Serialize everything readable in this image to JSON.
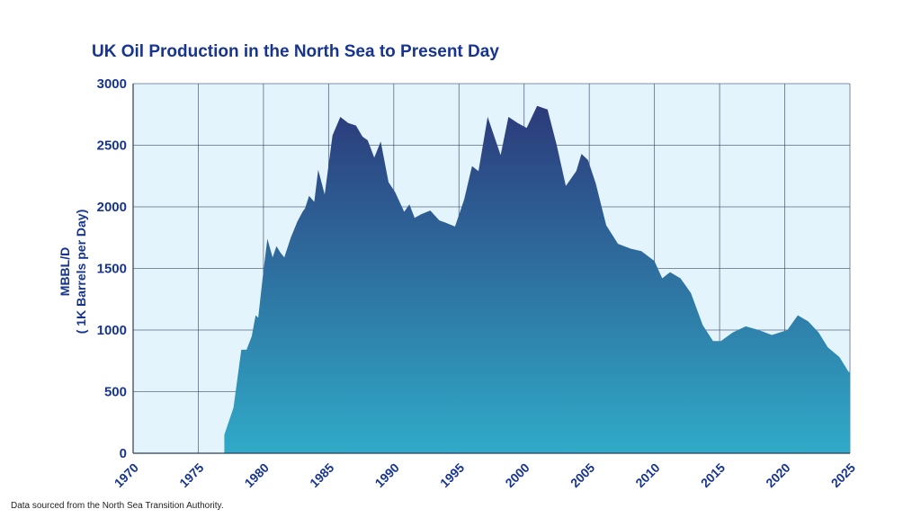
{
  "chart_data": {
    "type": "area",
    "title": "UK Oil Production in the North Sea to Present Day",
    "xlabel": "",
    "ylabel_line1": "MBBL/D",
    "ylabel_line2": "( 1K Barrels per Day)",
    "xlim": [
      1970,
      2025
    ],
    "ylim": [
      0,
      3000
    ],
    "xticks": [
      1970,
      1975,
      1980,
      1985,
      1990,
      1995,
      2000,
      2005,
      2010,
      2015,
      2020,
      2025
    ],
    "yticks": [
      0,
      500,
      1000,
      1500,
      2000,
      2500,
      3000
    ],
    "grid": true,
    "series": [
      {
        "name": "UK Oil Production",
        "x": [
          1977.0,
          1977.7,
          1978.3,
          1978.7,
          1979.1,
          1979.4,
          1979.6,
          1980.0,
          1980.3,
          1980.7,
          1981.0,
          1981.3,
          1981.6,
          1982.1,
          1982.6,
          1983.0,
          1983.2,
          1983.5,
          1983.9,
          1984.2,
          1984.7,
          1985.3,
          1985.9,
          1986.5,
          1987.1,
          1987.6,
          1988.0,
          1988.5,
          1989.0,
          1989.6,
          1990.1,
          1990.8,
          1991.2,
          1991.6,
          1992.1,
          1992.8,
          1993.5,
          1994.0,
          1994.7,
          1995.4,
          1996.0,
          1996.5,
          1997.2,
          1998.2,
          1998.8,
          1999.5,
          2000.2,
          2001.0,
          2001.8,
          2002.5,
          2003.2,
          2004.0,
          2004.4,
          2004.9,
          2005.5,
          2006.3,
          2007.2,
          2008.2,
          2009.0,
          2010.0,
          2010.6,
          2011.2,
          2012.0,
          2012.8,
          2013.7,
          2014.5,
          2015.1,
          2016.0,
          2017.0,
          2018.0,
          2019.0,
          2020.2,
          2021.0,
          2021.8,
          2022.6,
          2023.3,
          2024.2,
          2024.9,
          2025.0
        ],
        "values": [
          150,
          370,
          840,
          840,
          950,
          1120,
          1100,
          1480,
          1740,
          1590,
          1680,
          1630,
          1590,
          1750,
          1880,
          1960,
          1990,
          2090,
          2040,
          2300,
          2100,
          2580,
          2730,
          2680,
          2660,
          2570,
          2540,
          2400,
          2530,
          2200,
          2120,
          1960,
          2020,
          1910,
          1940,
          1970,
          1890,
          1870,
          1840,
          2060,
          2330,
          2290,
          2730,
          2420,
          2730,
          2680,
          2640,
          2820,
          2790,
          2500,
          2170,
          2290,
          2430,
          2380,
          2190,
          1850,
          1700,
          1660,
          1640,
          1560,
          1420,
          1470,
          1420,
          1300,
          1040,
          910,
          910,
          980,
          1030,
          1000,
          960,
          1000,
          1120,
          1070,
          980,
          860,
          780,
          660,
          660
        ],
        "fill_top": "#2c3a7a",
        "fill_bottom": "#30aac8"
      }
    ],
    "plot_background": "#e4f4fc",
    "source_note": "Data sourced from the North Sea Transition Authority."
  }
}
